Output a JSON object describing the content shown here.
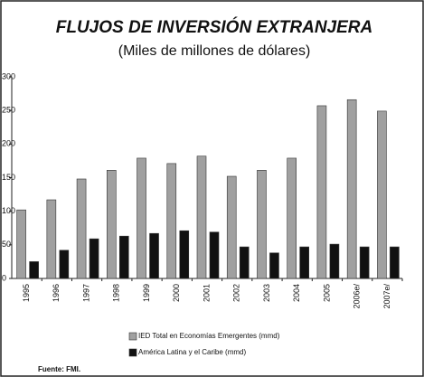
{
  "chart_data": {
    "type": "bar",
    "title": "FLUJOS DE INVERSIÓN EXTRANJERA",
    "subtitle": "(Miles de millones de dólares)",
    "categories": [
      "1995",
      "1996",
      "1997",
      "1998",
      "1999",
      "2000",
      "2001",
      "2002",
      "2003",
      "2004",
      "2005",
      "2006e/",
      "2007e/"
    ],
    "series": [
      {
        "name": "IED Total en Economías Emergentes (mmd)",
        "color": "#a0a0a0",
        "values": [
          102,
          117,
          148,
          161,
          179,
          171,
          182,
          152,
          161,
          179,
          257,
          266,
          249
        ]
      },
      {
        "name": "América Latina y el Caribe (mmd)",
        "color": "#111111",
        "values": [
          25,
          42,
          59,
          63,
          67,
          71,
          69,
          47,
          38,
          47,
          51,
          47,
          47
        ]
      }
    ],
    "ylim": [
      0,
      300
    ],
    "yticks": [
      0,
      50,
      100,
      150,
      200,
      250,
      300
    ],
    "source": "Fuente: FMI."
  }
}
